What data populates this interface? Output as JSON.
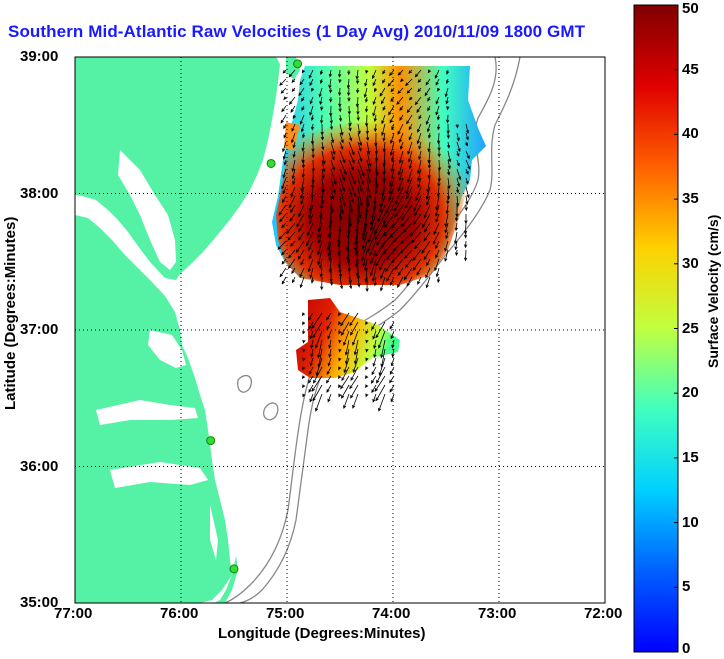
{
  "title": "Southern Mid-Atlantic Raw Velocities (1 Day Avg) 2010/11/09 1800 GMT",
  "axes": {
    "xlabel": "Longitude (Degrees:Minutes)",
    "ylabel": "Latitude (Degrees:Minutes)",
    "x_ticks": [
      "77:00",
      "76:00",
      "75:00",
      "74:00",
      "73:00",
      "72:00"
    ],
    "y_ticks": [
      "39:00",
      "38:00",
      "37:00",
      "36:00",
      "35:00"
    ],
    "xlim": [
      -77,
      -72
    ],
    "ylim": [
      35,
      39
    ],
    "grid": "dotted"
  },
  "colorbar": {
    "label": "Surface Velocity (cm/s)",
    "min": 0,
    "max": 50,
    "ticks": [
      "50",
      "45",
      "40",
      "35",
      "30",
      "25",
      "20",
      "15",
      "10",
      "5",
      "0"
    ],
    "colormap": "jet"
  },
  "colors": {
    "land": "#55f2a5",
    "grid": "#000000",
    "isobath": "#888888",
    "title": "#1a1aff",
    "station": "#33dd33"
  },
  "stations": [
    {
      "lon": -74.9,
      "lat": 38.95
    },
    {
      "lon": -75.15,
      "lat": 38.22
    },
    {
      "lon": -75.72,
      "lat": 36.19
    },
    {
      "lon": -75.5,
      "lat": 35.25
    }
  ]
}
